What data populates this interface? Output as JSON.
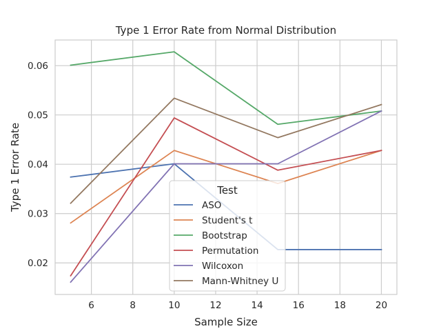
{
  "chart_data": {
    "type": "line",
    "title": "Type 1 Error Rate from Normal Distribution",
    "xlabel": "Sample Size",
    "ylabel": "Type 1 Error Rate",
    "x": [
      5,
      10,
      15,
      20
    ],
    "xlim": [
      4.25,
      20.75
    ],
    "ylim": [
      0.0136,
      0.0652
    ],
    "xticks": [
      6,
      8,
      10,
      12,
      14,
      16,
      18,
      20
    ],
    "yticks": [
      0.02,
      0.03,
      0.04,
      0.05,
      0.06
    ],
    "ytick_labels": [
      "0.02",
      "0.03",
      "0.04",
      "0.05",
      "0.06"
    ],
    "grid": true,
    "legend": {
      "title": "Test",
      "placement": "lower-center"
    },
    "series": [
      {
        "name": "ASO",
        "color": "#4c72b0",
        "values": [
          0.0374,
          0.0401,
          0.0227,
          0.0227
        ]
      },
      {
        "name": "Student's t",
        "color": "#dd8452",
        "values": [
          0.0281,
          0.0428,
          0.0361,
          0.0428
        ]
      },
      {
        "name": "Bootstrap",
        "color": "#55a868",
        "values": [
          0.0601,
          0.0628,
          0.0481,
          0.0508
        ]
      },
      {
        "name": "Permutation",
        "color": "#c44e52",
        "values": [
          0.0174,
          0.0494,
          0.0388,
          0.0428
        ]
      },
      {
        "name": "Wilcoxon",
        "color": "#8172b3",
        "values": [
          0.0161,
          0.0401,
          0.0401,
          0.0508
        ]
      },
      {
        "name": "Mann-Whitney U",
        "color": "#937860",
        "values": [
          0.0321,
          0.0534,
          0.0454,
          0.0521
        ]
      }
    ]
  }
}
